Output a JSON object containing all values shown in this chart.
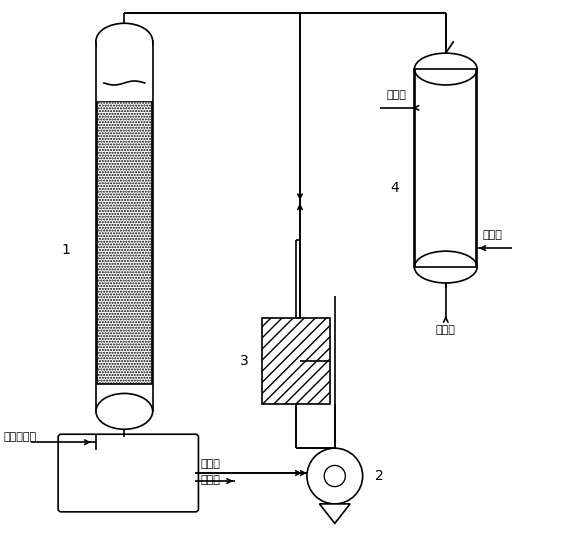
{
  "bg_color": "#ffffff",
  "line_color": "#000000",
  "labels": {
    "1": "1",
    "2": "2",
    "3": "3",
    "4": "4",
    "raw_material": "原料混合气",
    "heat_transfer_line1": "导热油",
    "heat_transfer_line2": "截温盐",
    "cold_out": "冷媒出",
    "cold_in": "冷媒进",
    "crude_product": "粗产品"
  }
}
